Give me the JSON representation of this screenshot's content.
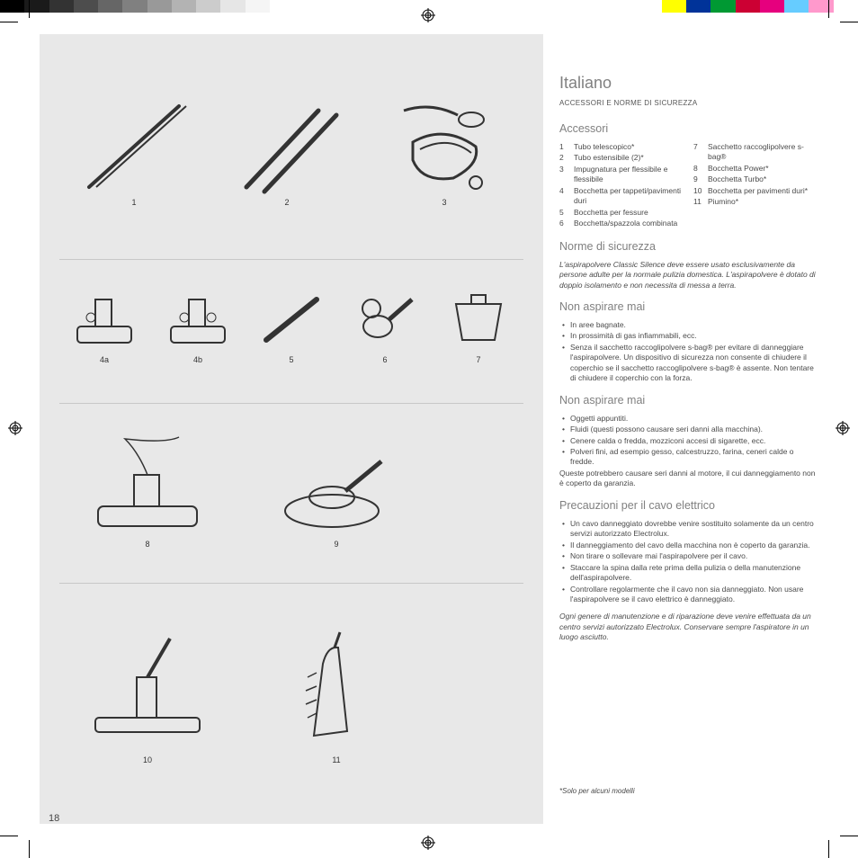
{
  "colorbar_left": [
    "#000000",
    "#1a1a1a",
    "#333333",
    "#4d4d4d",
    "#666666",
    "#808080",
    "#999999",
    "#b3b3b3",
    "#cccccc",
    "#e6e6e6",
    "#f5f5f5",
    "#ffffff"
  ],
  "colorbar_right": [
    "#ffffff",
    "#ffff00",
    "#003399",
    "#009933",
    "#cc0033",
    "#e6007e",
    "#66ccff",
    "#ff99cc",
    "#ffffff"
  ],
  "page_number": "18",
  "lang_title": "Italiano",
  "subheading": "ACCESSORI E NORME DI SICUREZZA",
  "sec_accessori": "Accessori",
  "acc_left": [
    {
      "n": "1",
      "t": "Tubo telescopico*"
    },
    {
      "n": "2",
      "t": "Tubo estensibile (2)*"
    },
    {
      "n": "3",
      "t": "Impugnatura per flessibile e flessibile"
    },
    {
      "n": "4",
      "t": "Bocchetta per tappeti/pavimenti duri"
    },
    {
      "n": "5",
      "t": "Bocchetta per fessure"
    },
    {
      "n": "6",
      "t": "Bocchetta/spazzola combinata"
    }
  ],
  "acc_right": [
    {
      "n": "7",
      "t": "Sacchetto raccoglipolvere s-bag®"
    },
    {
      "n": "8",
      "t": "Bocchetta Power*"
    },
    {
      "n": "9",
      "t": "Bocchetta Turbo*"
    },
    {
      "n": "10",
      "t": "Bocchetta per pavimenti duri*"
    },
    {
      "n": "11",
      "t": "Piumino*"
    }
  ],
  "sec_norme": "Norme di sicurezza",
  "norme_text": "L'aspirapolvere Classic Silence deve essere usato esclusivamente da persone adulte per la normale pulizia domestica. L'aspirapolvere è dotato di doppio isolamento e non necessita di messa a terra.",
  "sec_nonasp1": "Non aspirare mai",
  "nonasp1": [
    "In aree bagnate.",
    "In prossimità di gas infiammabili, ecc.",
    "Senza il sacchetto raccoglipolvere s-bag® per evitare di danneggiare l'aspirapolvere. Un dispositivo di sicurezza non consente di chiudere il coperchio se il sacchetto raccoglipolvere s-bag® è assente. Non tentare di chiudere il coperchio con la forza."
  ],
  "sec_nonasp2": "Non aspirare mai",
  "nonasp2": [
    "Oggetti appuntiti.",
    "Fluidi (questi possono causare seri danni alla macchina).",
    "Cenere calda o fredda, mozziconi accesi di sigarette, ecc.",
    "Polveri fini, ad esempio gesso, calcestruzzo, farina, ceneri calde o fredde."
  ],
  "nonasp2_tail": "Queste potrebbero causare seri danni al motore, il cui danneggiamento non è coperto da garanzia.",
  "sec_precauz": "Precauzioni per il cavo elettrico",
  "precauz": [
    "Un cavo danneggiato dovrebbe venire sostituito solamente da un centro servizi autorizzato Electrolux.",
    "Il danneggiamento del cavo della macchina non è coperto da garanzia.",
    "Non tirare o sollevare mai l'aspirapolvere per il cavo.",
    "Staccare la spina dalla rete prima della pulizia o della manutenzione dell'aspirapolvere.",
    "Controllare regolarmente che il cavo non sia danneggiato. Non usare l'aspirapolvere se il cavo elettrico è danneggiato."
  ],
  "manutenz": "Ogni genere di manutenzione e di riparazione deve venire effettuata da un centro servizi autorizzato Electrolux. Conservare sempre l'aspiratore in un luogo asciutto.",
  "footnote": "*Solo per alcuni modelli",
  "ill_labels": {
    "r1": [
      "1",
      "2",
      "3"
    ],
    "r2": [
      "4a",
      "4b",
      "5",
      "6",
      "7"
    ],
    "r3": [
      "8",
      "9"
    ],
    "r4": [
      "10",
      "11"
    ]
  }
}
